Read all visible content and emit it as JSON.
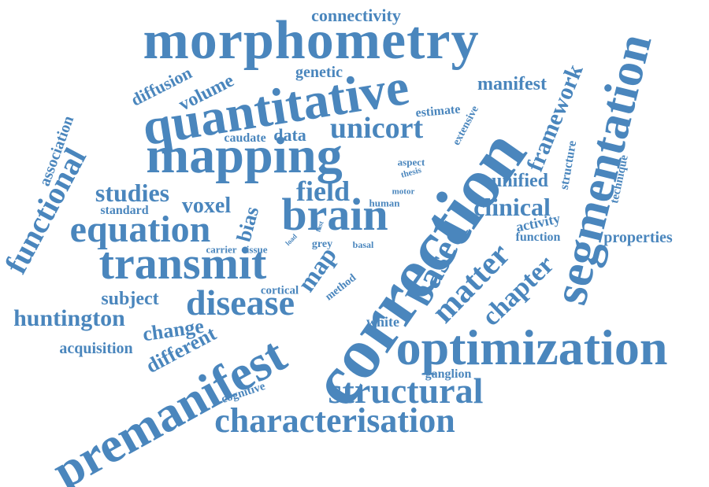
{
  "color": "#4a86bd",
  "words": {
    "morphometry": "morphometry",
    "connectivity": "connectivity",
    "quantitative": "quantitative",
    "mapping": "mapping",
    "correction": "correction",
    "segmentation": "segmentation",
    "optimization": "optimization",
    "premanifest": "premanifest",
    "transmit": "transmit",
    "brain": "brain",
    "equation": "equation",
    "disease": "disease",
    "structural": "structural",
    "characterisation": "characterisation",
    "based": "based",
    "matter": "matter",
    "unicort": "unicort",
    "functional": "functional",
    "field": "field",
    "huntington": "huntington",
    "studies": "studies",
    "framework": "framework",
    "chapter": "chapter",
    "clinical": "clinical",
    "map": "map",
    "diffusion": "diffusion",
    "volume": "volume",
    "genetic": "genetic",
    "manifest": "manifest",
    "association": "association",
    "voxel": "voxel",
    "bias": "bias",
    "subject": "subject",
    "change": "change",
    "different": "different",
    "acquisition": "acquisition",
    "unified": "unified",
    "properties": "properties",
    "activity": "activity",
    "function": "function",
    "structure": "structure",
    "technique": "technique",
    "estimate": "estimate",
    "extensive": "extensive",
    "data": "data",
    "caudate": "caudate",
    "aspect": "aspect",
    "thesis": "thesis",
    "human": "human",
    "motor": "motor",
    "standard": "standard",
    "carrier": "carrier",
    "tissue": "tissue",
    "load": "load",
    "fast": "fast",
    "grey": "grey",
    "basal": "basal",
    "method": "method",
    "cortical": "cortical",
    "white": "white",
    "ganglion": "ganglion",
    "cognitive": "cognitive"
  }
}
